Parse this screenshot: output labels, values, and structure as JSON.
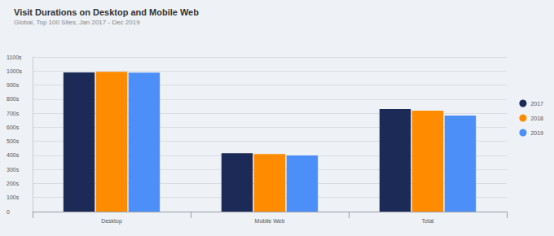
{
  "chart_data": {
    "type": "bar",
    "title": "Visit Durations on Desktop and Mobile Web",
    "subtitle": "Global, Top 100 Sites, Jan 2017 - Dec 2019",
    "categories": [
      "Desktop",
      "Mobile Web",
      "Total"
    ],
    "series": [
      {
        "name": "2017",
        "color": "#1b2a57",
        "values": [
          990,
          415,
          730
        ]
      },
      {
        "name": "2018",
        "color": "#ff8c00",
        "values": [
          995,
          410,
          718
        ]
      },
      {
        "name": "2019",
        "color": "#4d8ff8",
        "values": [
          988,
          400,
          683
        ]
      }
    ],
    "ylim": [
      0,
      1100
    ],
    "yticks": [
      0,
      {
        "value": 100,
        "label": "100s"
      },
      {
        "value": 200,
        "label": "200s"
      },
      {
        "value": 300,
        "label": "300s"
      },
      {
        "value": 400,
        "label": "400s"
      },
      {
        "value": 500,
        "label": "500s"
      },
      {
        "value": 600,
        "label": "600s"
      },
      {
        "value": 700,
        "label": "700s"
      },
      {
        "value": 800,
        "label": "800s"
      },
      {
        "value": 900,
        "label": "900s"
      },
      {
        "value": 1000,
        "label": "1000s"
      },
      {
        "value": 1100,
        "label": "1100s"
      }
    ],
    "grid": true,
    "legend": "right"
  }
}
